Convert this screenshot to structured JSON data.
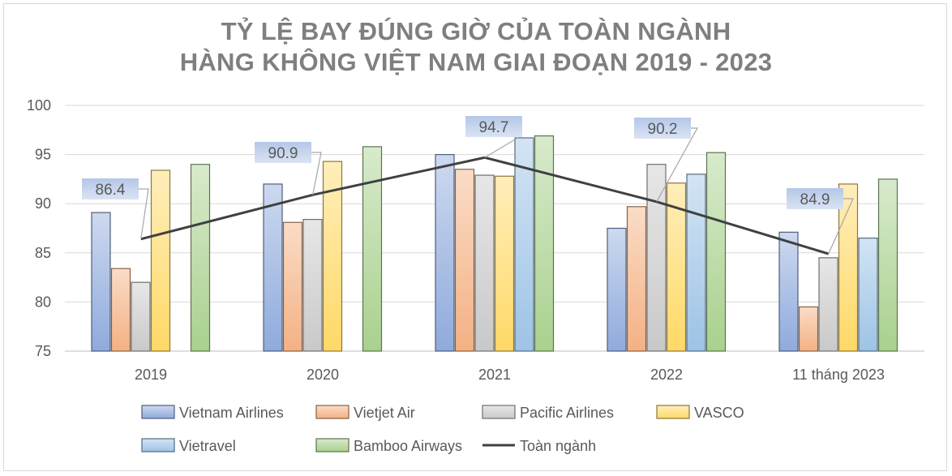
{
  "chart_data": {
    "type": "bar",
    "title_line1": "TỶ LỆ BAY ĐÚNG GIỜ CỦA TOÀN NGÀNH",
    "title_line2": "HÀNG KHÔNG VIỆT NAM GIAI ĐOẠN 2019 - 2023",
    "categories": [
      "2019",
      "2020",
      "2021",
      "2022",
      "11 tháng 2023"
    ],
    "ylim": [
      75,
      100
    ],
    "yticks": [
      75,
      80,
      85,
      90,
      95,
      100
    ],
    "grid": true,
    "legend_position": "bottom",
    "series": [
      {
        "name": "Vietnam Airlines",
        "color": "#8faadc",
        "values": [
          89.1,
          92.0,
          95.0,
          87.5,
          87.1
        ]
      },
      {
        "name": "Vietjet Air",
        "color": "#f4b183",
        "values": [
          83.4,
          88.1,
          93.5,
          89.7,
          79.5
        ]
      },
      {
        "name": "Pacific Airlines",
        "color": "#c9c9c9",
        "values": [
          82.0,
          88.4,
          92.9,
          94.0,
          84.5
        ]
      },
      {
        "name": "VASCO",
        "color": "#ffd966",
        "values": [
          93.4,
          94.3,
          92.8,
          92.1,
          92.0
        ]
      },
      {
        "name": "Vietravel",
        "color": "#9dc3e6",
        "values": [
          null,
          null,
          96.7,
          93.0,
          86.5
        ]
      },
      {
        "name": "Bamboo Airways",
        "color": "#a9d18e",
        "values": [
          94.0,
          95.8,
          96.9,
          95.2,
          92.5
        ]
      }
    ],
    "line_series": {
      "name": "Toàn ngành",
      "color": "#404040",
      "values": [
        86.4,
        90.9,
        94.7,
        90.2,
        84.9
      ],
      "data_labels": [
        "86.4",
        "90.9",
        "94.7",
        "90.2",
        "84.9"
      ]
    }
  }
}
